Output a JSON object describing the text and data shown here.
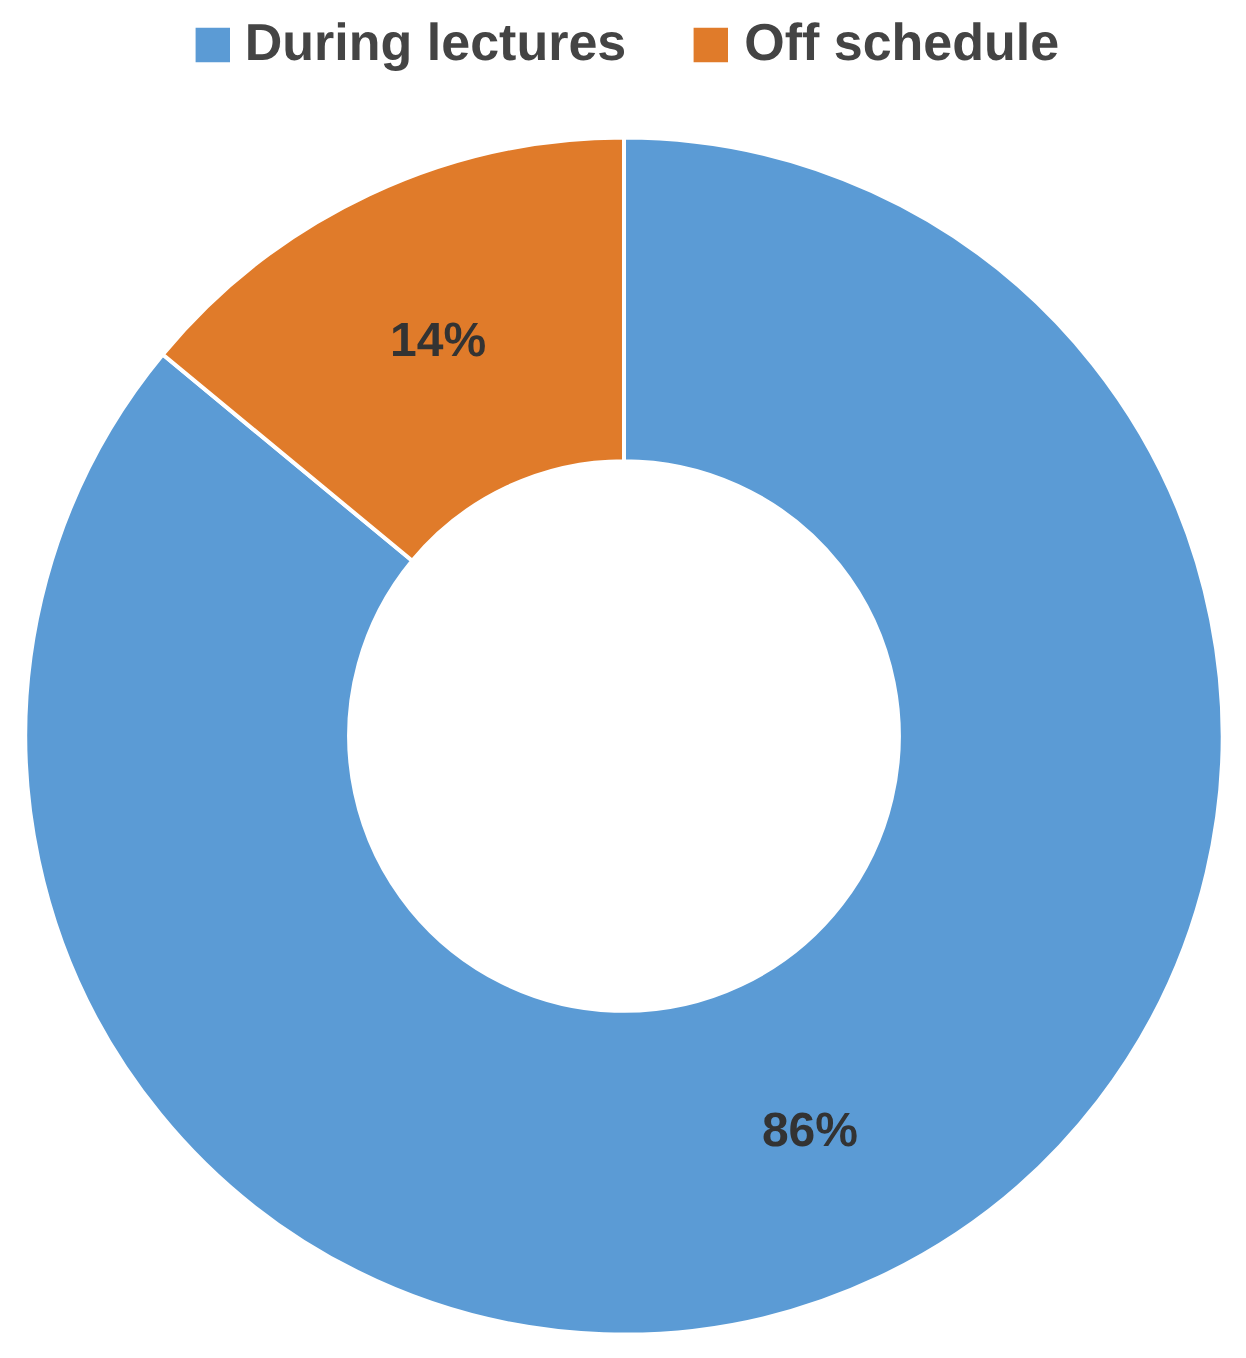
{
  "chart_data": {
    "type": "donut",
    "categories": [
      "During lectures",
      "Off schedule"
    ],
    "values": [
      86,
      14
    ],
    "colors": [
      "#5b9bd5",
      "#e07b2a"
    ],
    "value_labels": [
      "86%",
      "14%"
    ],
    "legend": "top"
  }
}
